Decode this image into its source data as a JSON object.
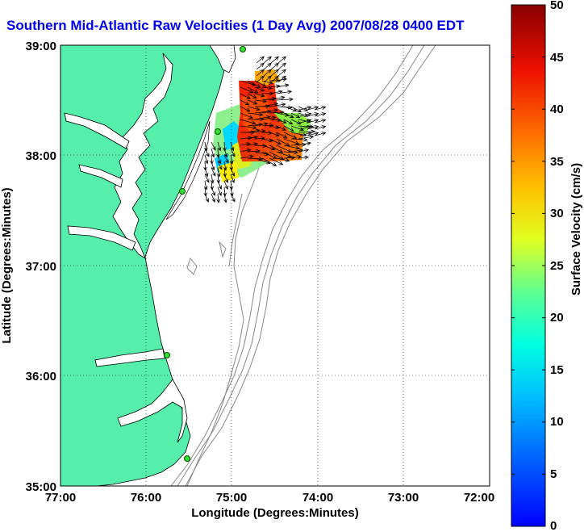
{
  "title": "Southern Mid-Atlantic Raw Velocities (1 Day Avg) 2007/08/28 0400 EDT",
  "map": {
    "xlabel": "Longitude (Degrees:Minutes)",
    "ylabel": "Latitude (Degrees:Minutes)",
    "lon_ticks": [
      "77:00",
      "76:00",
      "75:00",
      "74:00",
      "73:00",
      "72:00"
    ],
    "lat_ticks": [
      "39:00",
      "38:00",
      "37:00",
      "36:00",
      "35:00"
    ],
    "lon_range": [
      -77,
      -72
    ],
    "lat_range": [
      35,
      39
    ],
    "grid": "dotted",
    "land_color": "#55eeaa",
    "coast_color": "#000000",
    "bathymetry_color": "#888888"
  },
  "colorbar": {
    "label": "Surface Velocity (cm/s)",
    "min": 0,
    "max": 50,
    "ticks": [
      "0",
      "5",
      "10",
      "15",
      "20",
      "25",
      "30",
      "35",
      "40",
      "45",
      "50"
    ],
    "colormap": "jet"
  },
  "stations": [
    {
      "lon": -75.12,
      "lat": 38.96
    },
    {
      "lon": -75.15,
      "lat": 38.22
    },
    {
      "lon": -75.55,
      "lat": 37.72
    },
    {
      "lon": -75.75,
      "lat": 36.2
    },
    {
      "lon": -75.5,
      "lat": 35.25
    }
  ]
}
